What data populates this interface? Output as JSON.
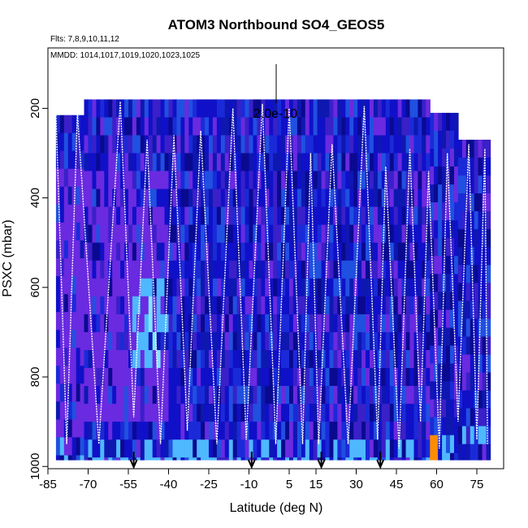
{
  "chart_data": {
    "type": "heatmap",
    "title": "ATOM3 Northbound SO4_GEOS5",
    "flights_note": "Flts: 7,8,9,10,11,12",
    "dates_note": "MMDD: 1014,1017,1019,1020,1023,1025",
    "xlabel": "Latitude (deg N)",
    "ylabel": "PSXC (mbar)",
    "xlim": [
      -85,
      85
    ],
    "ylim": [
      1005,
      65
    ],
    "x_ticks": [
      -85,
      -70,
      -55,
      -40,
      -25,
      -10,
      5,
      15,
      30,
      45,
      60,
      75
    ],
    "y_ticks": [
      200,
      400,
      600,
      800,
      1000
    ],
    "scale_bar_label": "2.0e-10",
    "colors": {
      "background_field": "#1010c8",
      "dark": "#0a0a90",
      "purple": "#6a2ae0",
      "light_blue": "#4fb8ff",
      "cyan": "#7fe6ff",
      "orange": "#ff8c00",
      "profile_line": "#ffffff"
    },
    "marker_latitudes": [
      -53,
      -9,
      17,
      39
    ],
    "profile_turnarounds": [
      {
        "lat": -82,
        "p": 215
      },
      {
        "lat": -78,
        "p": 950
      },
      {
        "lat": -74,
        "p": 210
      },
      {
        "lat": -66,
        "p": 950
      },
      {
        "lat": -58,
        "p": 185
      },
      {
        "lat": -53,
        "p": 890
      },
      {
        "lat": -48,
        "p": 270
      },
      {
        "lat": -43,
        "p": 950
      },
      {
        "lat": -38,
        "p": 260
      },
      {
        "lat": -33,
        "p": 920
      },
      {
        "lat": -28,
        "p": 250
      },
      {
        "lat": -22,
        "p": 950
      },
      {
        "lat": -16,
        "p": 200
      },
      {
        "lat": -11,
        "p": 940
      },
      {
        "lat": -5,
        "p": 190
      },
      {
        "lat": 0,
        "p": 950
      },
      {
        "lat": 5,
        "p": 200
      },
      {
        "lat": 10,
        "p": 950
      },
      {
        "lat": 13,
        "p": 300
      },
      {
        "lat": 16,
        "p": 950
      },
      {
        "lat": 21,
        "p": 280
      },
      {
        "lat": 27,
        "p": 950
      },
      {
        "lat": 33,
        "p": 195
      },
      {
        "lat": 38,
        "p": 940
      },
      {
        "lat": 41,
        "p": 330
      },
      {
        "lat": 46,
        "p": 960
      },
      {
        "lat": 50,
        "p": 290
      },
      {
        "lat": 54,
        "p": 900
      },
      {
        "lat": 57,
        "p": 340
      },
      {
        "lat": 61,
        "p": 960
      },
      {
        "lat": 64,
        "p": 300
      },
      {
        "lat": 68,
        "p": 900
      },
      {
        "lat": 72,
        "p": 280
      },
      {
        "lat": 75,
        "p": 940
      },
      {
        "lat": 78,
        "p": 290
      },
      {
        "lat": 79,
        "p": 950
      }
    ]
  }
}
